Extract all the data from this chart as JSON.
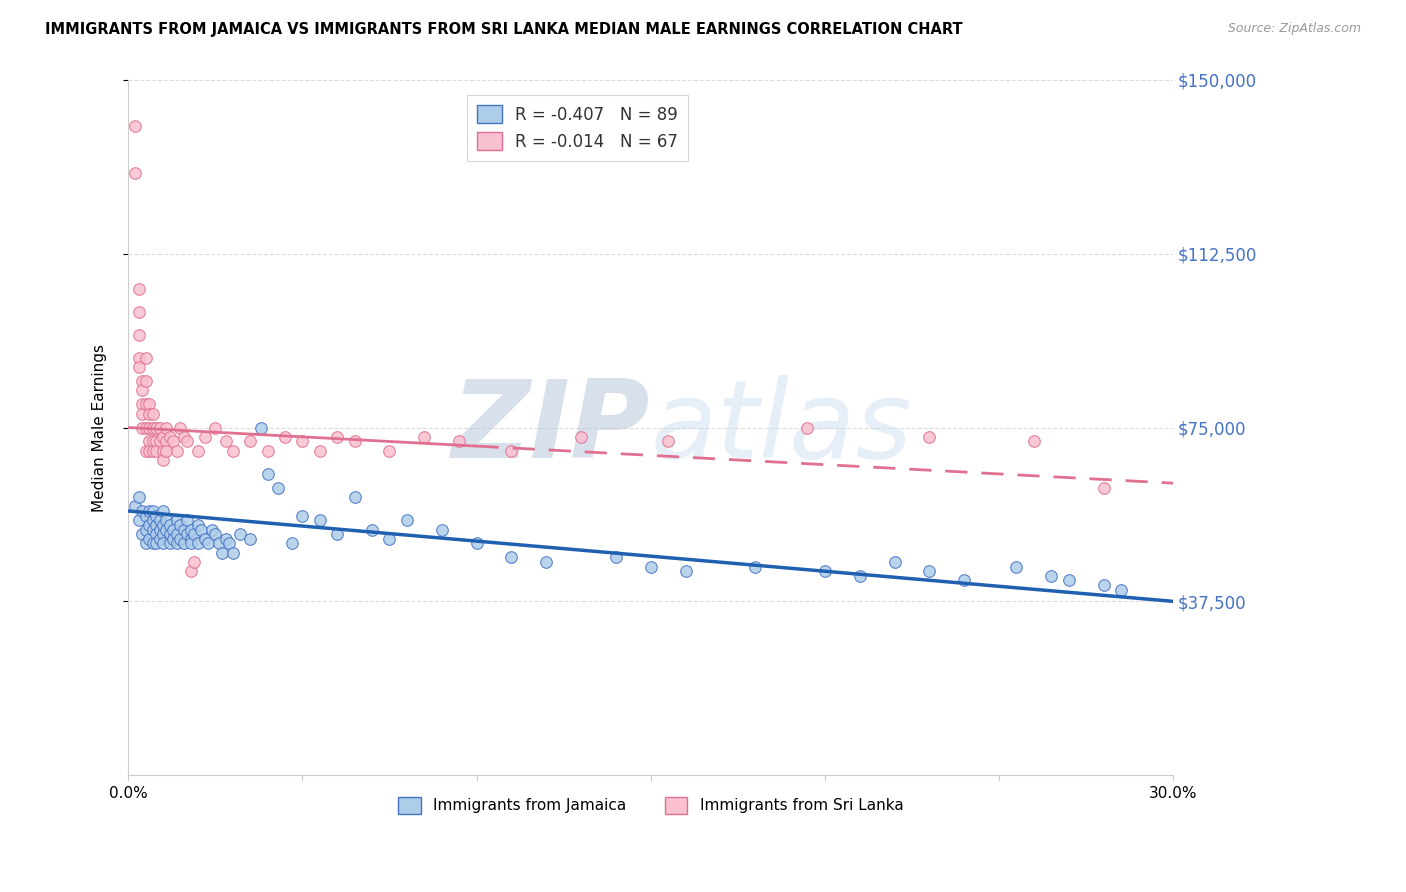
{
  "title": "IMMIGRANTS FROM JAMAICA VS IMMIGRANTS FROM SRI LANKA MEDIAN MALE EARNINGS CORRELATION CHART",
  "source": "Source: ZipAtlas.com",
  "ylabel": "Median Male Earnings",
  "watermark": "ZIPatlas",
  "xlim": [
    0.0,
    0.3
  ],
  "ylim": [
    0,
    150000
  ],
  "yticks": [
    37500,
    75000,
    112500,
    150000
  ],
  "ytick_labels": [
    "$37,500",
    "$75,000",
    "$112,500",
    "$150,000"
  ],
  "jamaica_face_color": "#aecde8",
  "jamaica_edge_color": "#4472c4",
  "jamaica_line_color": "#2060b0",
  "srilanka_face_color": "#f9c0cf",
  "srilanka_edge_color": "#e07090",
  "srilanka_line_color": "#e07090",
  "R_jamaica": -0.407,
  "N_jamaica": 89,
  "R_srilanka": -0.014,
  "N_srilanka": 67,
  "legend_label_jamaica": "Immigrants from Jamaica",
  "legend_label_srilanka": "Immigrants from Sri Lanka",
  "jamaica_x": [
    0.002,
    0.003,
    0.003,
    0.004,
    0.004,
    0.005,
    0.005,
    0.005,
    0.006,
    0.006,
    0.006,
    0.007,
    0.007,
    0.007,
    0.007,
    0.008,
    0.008,
    0.008,
    0.008,
    0.009,
    0.009,
    0.009,
    0.01,
    0.01,
    0.01,
    0.01,
    0.011,
    0.011,
    0.012,
    0.012,
    0.012,
    0.013,
    0.013,
    0.014,
    0.014,
    0.014,
    0.015,
    0.015,
    0.016,
    0.016,
    0.017,
    0.017,
    0.018,
    0.018,
    0.018,
    0.019,
    0.02,
    0.02,
    0.021,
    0.022,
    0.023,
    0.024,
    0.025,
    0.026,
    0.027,
    0.028,
    0.029,
    0.03,
    0.032,
    0.035,
    0.038,
    0.04,
    0.043,
    0.047,
    0.05,
    0.055,
    0.06,
    0.065,
    0.07,
    0.075,
    0.08,
    0.09,
    0.1,
    0.11,
    0.12,
    0.14,
    0.15,
    0.16,
    0.18,
    0.2,
    0.21,
    0.22,
    0.23,
    0.24,
    0.255,
    0.265,
    0.27,
    0.28,
    0.285
  ],
  "jamaica_y": [
    58000,
    55000,
    60000,
    52000,
    57000,
    53000,
    56000,
    50000,
    54000,
    57000,
    51000,
    55000,
    53000,
    50000,
    57000,
    54000,
    52000,
    56000,
    50000,
    53000,
    55000,
    51000,
    54000,
    52000,
    57000,
    50000,
    55000,
    53000,
    52000,
    54000,
    50000,
    53000,
    51000,
    55000,
    52000,
    50000,
    54000,
    51000,
    53000,
    50000,
    52000,
    55000,
    51000,
    53000,
    50000,
    52000,
    54000,
    50000,
    53000,
    51000,
    50000,
    53000,
    52000,
    50000,
    48000,
    51000,
    50000,
    48000,
    52000,
    51000,
    75000,
    65000,
    62000,
    50000,
    56000,
    55000,
    52000,
    60000,
    53000,
    51000,
    55000,
    53000,
    50000,
    47000,
    46000,
    47000,
    45000,
    44000,
    45000,
    44000,
    43000,
    46000,
    44000,
    42000,
    45000,
    43000,
    42000,
    41000,
    40000
  ],
  "srilanka_x": [
    0.002,
    0.002,
    0.003,
    0.003,
    0.003,
    0.003,
    0.003,
    0.004,
    0.004,
    0.004,
    0.004,
    0.004,
    0.005,
    0.005,
    0.005,
    0.005,
    0.005,
    0.006,
    0.006,
    0.006,
    0.006,
    0.006,
    0.007,
    0.007,
    0.007,
    0.007,
    0.008,
    0.008,
    0.008,
    0.009,
    0.009,
    0.01,
    0.01,
    0.01,
    0.011,
    0.011,
    0.011,
    0.012,
    0.013,
    0.014,
    0.015,
    0.016,
    0.017,
    0.018,
    0.019,
    0.02,
    0.022,
    0.025,
    0.028,
    0.03,
    0.035,
    0.04,
    0.045,
    0.05,
    0.055,
    0.06,
    0.065,
    0.075,
    0.085,
    0.095,
    0.11,
    0.13,
    0.155,
    0.195,
    0.23,
    0.26,
    0.28
  ],
  "srilanka_y": [
    140000,
    130000,
    105000,
    100000,
    95000,
    90000,
    88000,
    85000,
    83000,
    80000,
    78000,
    75000,
    90000,
    85000,
    80000,
    75000,
    70000,
    80000,
    78000,
    75000,
    72000,
    70000,
    78000,
    75000,
    72000,
    70000,
    75000,
    72000,
    70000,
    75000,
    72000,
    73000,
    70000,
    68000,
    75000,
    72000,
    70000,
    73000,
    72000,
    70000,
    75000,
    73000,
    72000,
    44000,
    46000,
    70000,
    73000,
    75000,
    72000,
    70000,
    72000,
    70000,
    73000,
    72000,
    70000,
    73000,
    72000,
    70000,
    73000,
    72000,
    70000,
    73000,
    72000,
    75000,
    73000,
    72000,
    62000
  ]
}
